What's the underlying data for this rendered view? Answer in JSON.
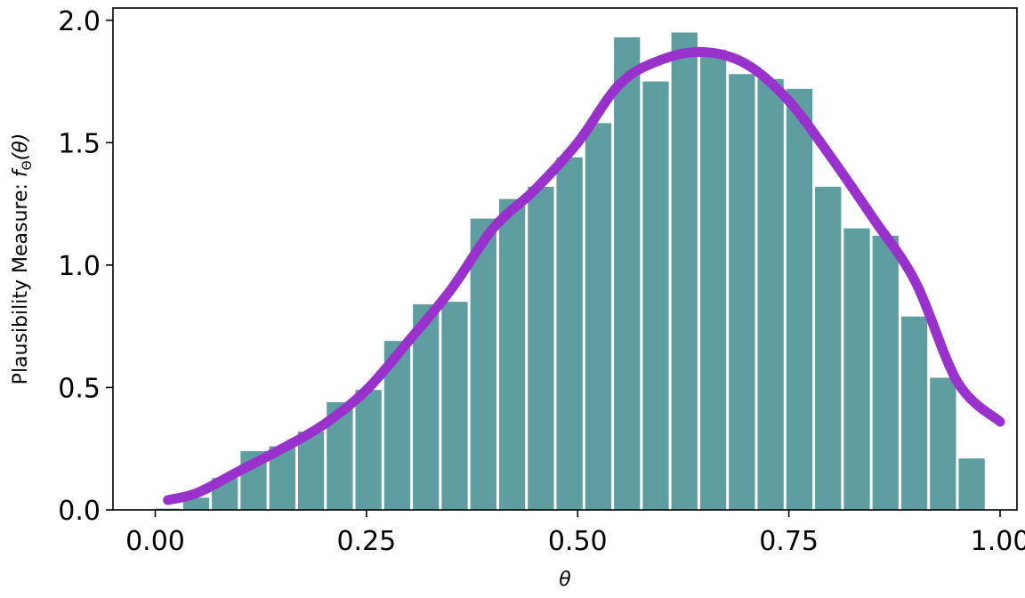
{
  "chart_data": {
    "type": "bar",
    "title": "",
    "xlabel": "θ",
    "ylabel": "Plausibility Measure: fΘ(θ)",
    "ylabel_parts": {
      "prefix": "Plausibility Measure: ",
      "f": "f",
      "sub": "Θ",
      "arg": "(θ)"
    },
    "xlim": [
      -0.05,
      1.02
    ],
    "ylim": [
      0,
      2.05
    ],
    "x_ticks": [
      0.0,
      0.25,
      0.5,
      0.75,
      1.0
    ],
    "x_tick_labels": [
      "0.00",
      "0.25",
      "0.50",
      "0.75",
      "1.00"
    ],
    "y_ticks": [
      0.0,
      0.5,
      1.0,
      1.5,
      2.0
    ],
    "y_tick_labels": [
      "0.0",
      "0.5",
      "1.0",
      "1.5",
      "2.0"
    ],
    "grid": false,
    "bar_color": "#5f9ea0",
    "curve_color": "#9932cc",
    "bins": {
      "left": [
        -0.0026,
        0.0314,
        0.0654,
        0.0994,
        0.1334,
        0.1674,
        0.2014,
        0.2354,
        0.2694,
        0.3034,
        0.3374,
        0.3714,
        0.4054,
        0.4394,
        0.4734,
        0.5074,
        0.5414,
        0.5754,
        0.6094,
        0.6434,
        0.6774,
        0.7114,
        0.7454,
        0.7794,
        0.8134,
        0.8474,
        0.8814,
        0.9154,
        0.9494
      ],
      "right": [
        0.0314,
        0.0654,
        0.0994,
        0.1334,
        0.1674,
        0.2014,
        0.2354,
        0.2694,
        0.3034,
        0.3374,
        0.3714,
        0.4054,
        0.4394,
        0.4734,
        0.5074,
        0.5414,
        0.5754,
        0.6094,
        0.6434,
        0.6774,
        0.7114,
        0.7454,
        0.7794,
        0.8134,
        0.8474,
        0.8814,
        0.9154,
        0.9494,
        0.9834
      ],
      "values": [
        0.005,
        0.05,
        0.13,
        0.24,
        0.26,
        0.32,
        0.44,
        0.49,
        0.69,
        0.84,
        0.85,
        1.19,
        1.27,
        1.32,
        1.44,
        1.58,
        1.93,
        1.75,
        1.95,
        1.88,
        1.78,
        1.76,
        1.72,
        1.32,
        1.15,
        1.12,
        0.79,
        0.54,
        0.21
      ]
    },
    "series": [
      {
        "type": "line",
        "x": [
          0.015,
          0.05,
          0.1,
          0.15,
          0.2,
          0.25,
          0.3,
          0.35,
          0.4,
          0.45,
          0.5,
          0.55,
          0.6,
          0.65,
          0.7,
          0.75,
          0.8,
          0.85,
          0.9,
          0.95,
          1.0
        ],
        "y": [
          0.04,
          0.07,
          0.16,
          0.25,
          0.35,
          0.49,
          0.69,
          0.9,
          1.15,
          1.31,
          1.5,
          1.74,
          1.84,
          1.87,
          1.82,
          1.67,
          1.44,
          1.19,
          0.93,
          0.52,
          0.36
        ]
      }
    ]
  }
}
